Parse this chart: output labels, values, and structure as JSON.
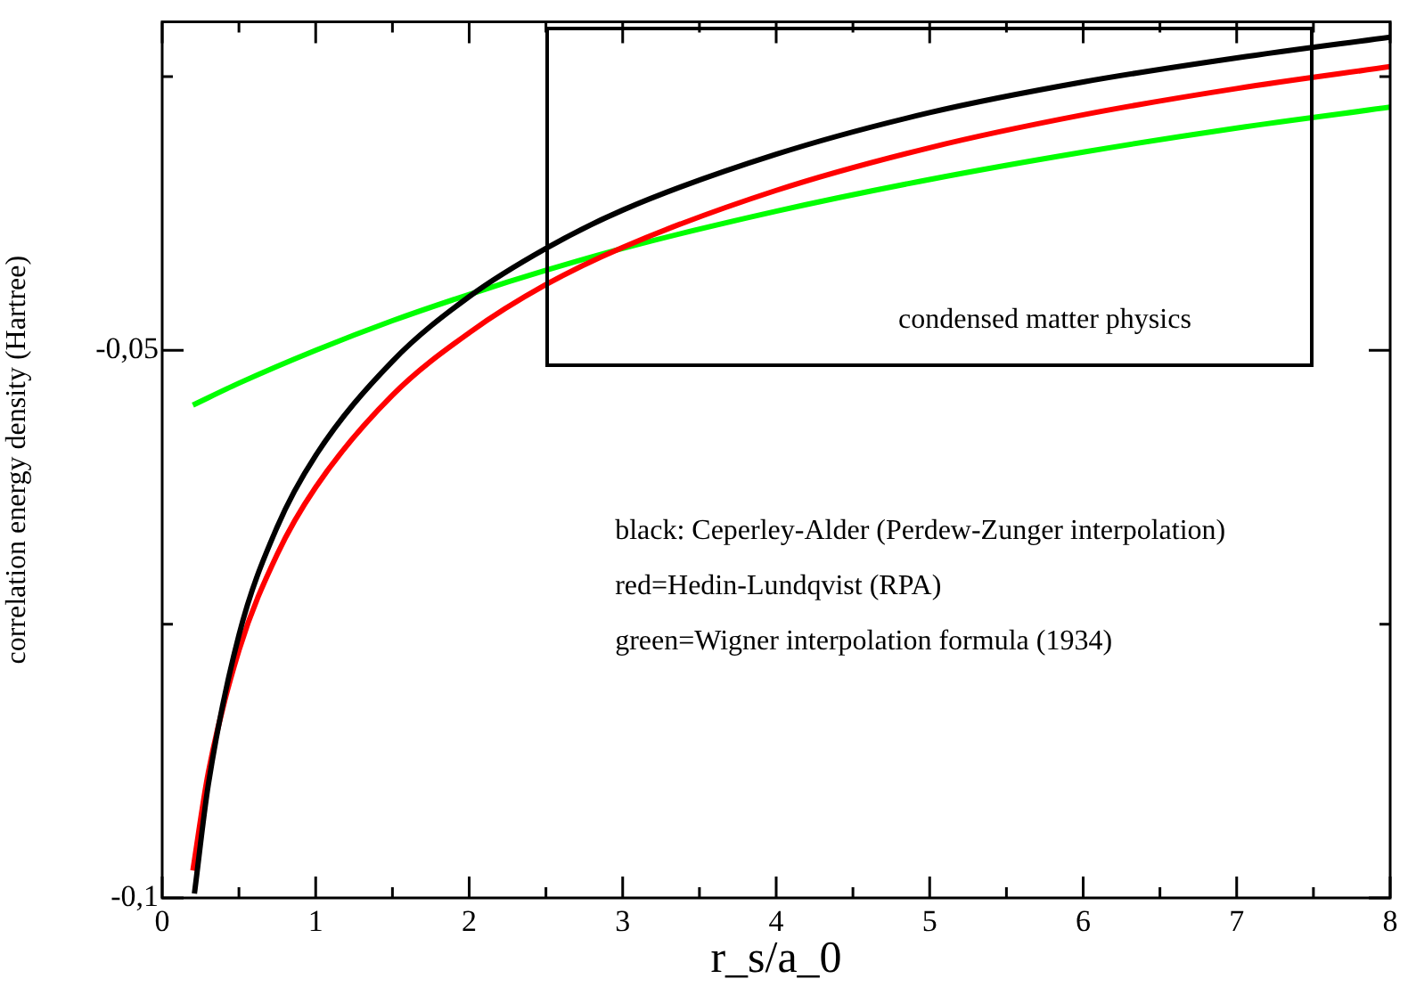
{
  "chart_data": {
    "type": "line",
    "xlabel": "r_s/a_0",
    "ylabel": "correlation energy density (Hartree)",
    "xlim": [
      0,
      8
    ],
    "xticks": [
      0,
      {
        "value": 0.5,
        "label": null
      },
      1,
      {
        "value": 1.5,
        "label": null
      },
      2,
      {
        "value": 2.5,
        "label": null
      },
      3,
      {
        "value": 3.5,
        "label": null
      },
      4,
      {
        "value": 4.5,
        "label": null
      },
      5,
      {
        "value": 5.5,
        "label": null
      },
      6,
      {
        "value": 6.5,
        "label": null
      },
      7,
      {
        "value": 7.5,
        "label": null
      },
      8
    ],
    "ylim": [
      -0.1,
      -0.02
    ],
    "yticks": [
      {
        "value": -0.1,
        "label": "-0,1"
      },
      {
        "value": -0.075,
        "label": null
      },
      {
        "value": -0.05,
        "label": "-0,05"
      },
      {
        "value": -0.025,
        "label": null
      }
    ],
    "grid": false,
    "legend": false,
    "marker": "none",
    "line_style": "solid",
    "series": [
      {
        "color": "#000000",
        "x": [
          0.21,
          0.3,
          0.5,
          0.75,
          1,
          1.5,
          2,
          2.5,
          3,
          4,
          5,
          6,
          7,
          8
        ],
        "values": [
          -0.0996,
          -0.0897,
          -0.076,
          -0.0661,
          -0.0596,
          -0.051,
          -0.0451,
          -0.0407,
          -0.0372,
          -0.0321,
          -0.0283,
          -0.0255,
          -0.0233,
          -0.0214
        ]
      },
      {
        "color": "#ff0000",
        "x": [
          0.2,
          0.3,
          0.5,
          0.75,
          1,
          1.5,
          2,
          2.5,
          3,
          4,
          5,
          6,
          7,
          8
        ],
        "values": [
          -0.0975,
          -0.0886,
          -0.0774,
          -0.0686,
          -0.0625,
          -0.0541,
          -0.0484,
          -0.044,
          -0.0406,
          -0.0354,
          -0.0315,
          -0.0285,
          -0.0261,
          -0.0241
        ]
      },
      {
        "color": "#00ff00",
        "x": [
          0.2,
          0.5,
          1,
          1.5,
          2,
          2.5,
          3,
          4,
          5,
          6,
          7,
          8
        ],
        "values": [
          -0.055,
          -0.053,
          -0.05,
          -0.0473,
          -0.0449,
          -0.0427,
          -0.0407,
          -0.0373,
          -0.0344,
          -0.0319,
          -0.0297,
          -0.0278
        ]
      }
    ],
    "annotations": [
      "condensed matter physics",
      "black: Ceperley-Alder (Perdew-Zunger interpolation)",
      "red=Hedin-Lundqvist (RPA)",
      "green=Wigner interpolation formula (1934)"
    ]
  }
}
